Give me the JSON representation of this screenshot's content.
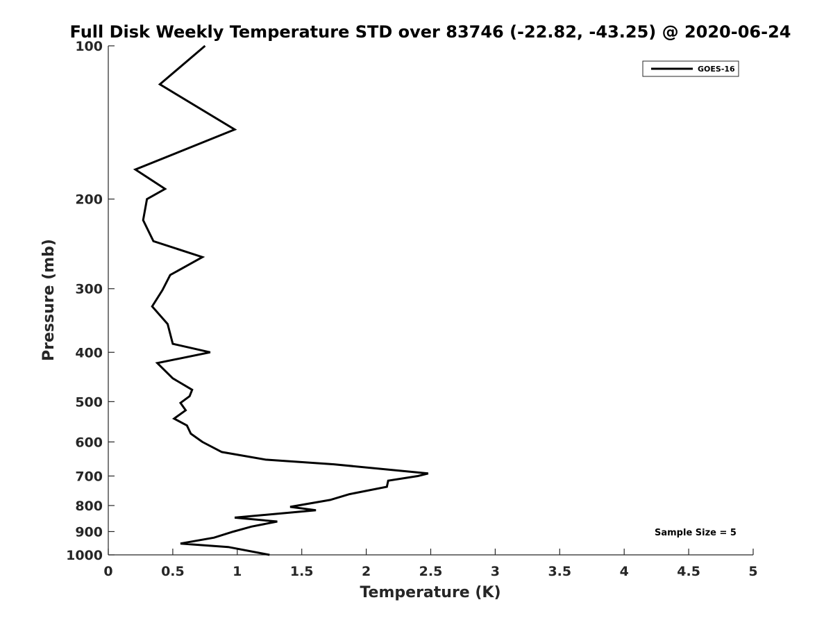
{
  "chart_data": {
    "type": "line",
    "title": "Full Disk Weekly Temperature STD over 83746 (-22.82, -43.25) @ 2020-06-24",
    "xlabel": "Temperature (K)",
    "ylabel": "Pressure (mb)",
    "xlim": [
      0,
      5
    ],
    "ylim": [
      100,
      1000
    ],
    "y_scale": "log",
    "y_reversed": true,
    "grid": false,
    "legend_position": "top-right",
    "xticks": [
      "0",
      "0.5",
      "1",
      "1.5",
      "2",
      "2.5",
      "3",
      "3.5",
      "4",
      "4.5",
      "5"
    ],
    "yticks": [
      "100",
      "200",
      "300",
      "400",
      "500",
      "600",
      "700",
      "800",
      "900",
      "1000"
    ],
    "series": [
      {
        "name": "GOES-16",
        "color": "#000000",
        "points": [
          [
            0.75,
            100
          ],
          [
            0.4,
            119
          ],
          [
            0.98,
            146
          ],
          [
            0.21,
            175
          ],
          [
            0.44,
            191
          ],
          [
            0.3,
            200
          ],
          [
            0.27,
            220
          ],
          [
            0.35,
            242
          ],
          [
            0.73,
            260
          ],
          [
            0.48,
            282
          ],
          [
            0.42,
            302
          ],
          [
            0.34,
            325
          ],
          [
            0.46,
            352
          ],
          [
            0.5,
            385
          ],
          [
            0.79,
            400
          ],
          [
            0.38,
            420
          ],
          [
            0.5,
            450
          ],
          [
            0.65,
            474
          ],
          [
            0.63,
            488
          ],
          [
            0.56,
            503
          ],
          [
            0.6,
            520
          ],
          [
            0.51,
            540
          ],
          [
            0.61,
            557
          ],
          [
            0.64,
            578
          ],
          [
            0.73,
            600
          ],
          [
            0.88,
            628
          ],
          [
            1.22,
            650
          ],
          [
            1.75,
            664
          ],
          [
            2.48,
            692
          ],
          [
            2.4,
            700
          ],
          [
            2.17,
            715
          ],
          [
            2.16,
            735
          ],
          [
            1.87,
            760
          ],
          [
            1.72,
            780
          ],
          [
            1.41,
            805
          ],
          [
            1.61,
            817
          ],
          [
            0.98,
            845
          ],
          [
            1.31,
            860
          ],
          [
            1.11,
            880
          ],
          [
            0.97,
            900
          ],
          [
            0.82,
            925
          ],
          [
            0.56,
            950
          ],
          [
            0.93,
            965
          ],
          [
            1.25,
            1000
          ]
        ]
      }
    ],
    "annotation": "Sample Size = 5"
  }
}
